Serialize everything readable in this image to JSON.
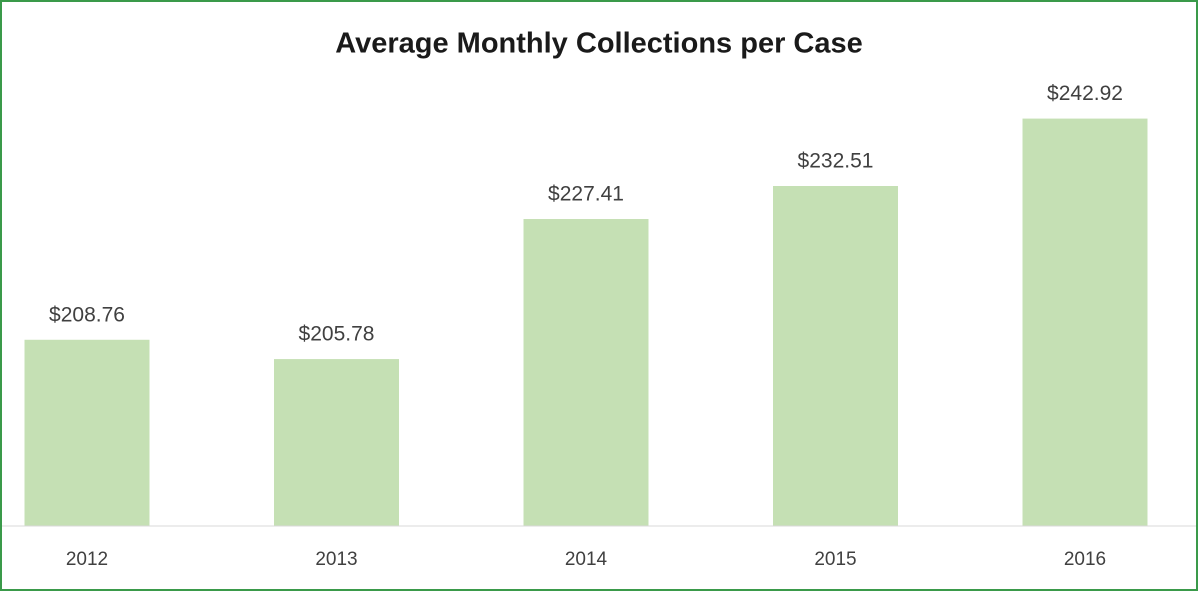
{
  "chart_data": {
    "type": "bar",
    "title": "Average Monthly Collections per Case",
    "categories": [
      "2012",
      "2013",
      "2014",
      "2015",
      "2016"
    ],
    "values": [
      208.76,
      205.78,
      227.41,
      232.51,
      242.92
    ],
    "value_labels": [
      "$208.76",
      "$205.78",
      "$227.41",
      "$232.51",
      "$242.92"
    ],
    "color": "#c5e0b4",
    "ylim": [
      180,
      260
    ]
  }
}
